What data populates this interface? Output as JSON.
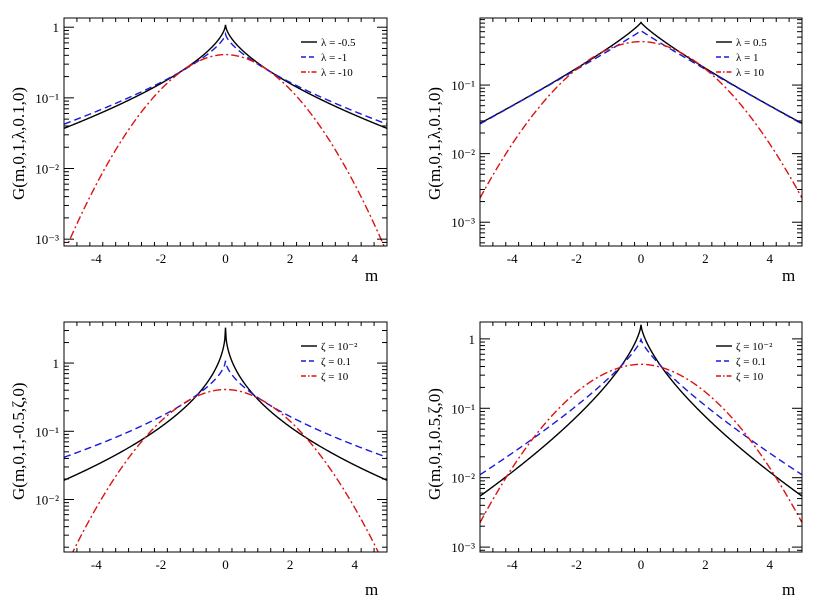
{
  "chart_data": [
    {
      "type": "line",
      "panel": "top-left",
      "ylabel": "G(m,0,1,λ,0.1,0)",
      "xlabel": "m",
      "xlim": [
        -5,
        5
      ],
      "ylim": [
        0.0008,
        1.35
      ],
      "yscale": "log",
      "xticks": [
        -4,
        -2,
        0,
        2,
        4
      ],
      "xtick_labels": [
        "-4",
        "-2",
        "0",
        "2",
        "4"
      ],
      "yticks": [
        0.001,
        0.01,
        0.1,
        1
      ],
      "ytick_labels": [
        "10⁻³",
        "10⁻²",
        "10⁻¹",
        "1"
      ],
      "legend_position": "top-right",
      "series": [
        {
          "name": "λ = -0.5",
          "color": "#000000",
          "dash": "solid",
          "peak": 1.08,
          "scale": 0.23,
          "power": 0.62
        },
        {
          "name": "λ = -1",
          "color": "#1a1adc",
          "dash": "dashed",
          "peak": 0.8,
          "scale": 0.37,
          "power": 0.68
        },
        {
          "name": "λ = -10",
          "color": "#dd1111",
          "dash": "dashdot",
          "peak": 0.41,
          "scale": 1.3,
          "power": 1.9
        }
      ]
    },
    {
      "type": "line",
      "panel": "top-right",
      "ylabel": "G(m,0,1,λ,0.1,0)",
      "xlabel": "m",
      "xlim": [
        -5,
        5
      ],
      "ylim": [
        0.00045,
        0.95
      ],
      "yscale": "log",
      "xticks": [
        -4,
        -2,
        0,
        2,
        4
      ],
      "xtick_labels": [
        "-4",
        "-2",
        "0",
        "2",
        "4"
      ],
      "yticks": [
        0.001,
        0.01,
        0.1
      ],
      "ytick_labels": [
        "10⁻³",
        "10⁻²",
        "10⁻¹"
      ],
      "legend_position": "top-right",
      "series": [
        {
          "name": "λ = 0.5",
          "color": "#000000",
          "dash": "solid",
          "peak": 0.82,
          "scale": 0.54,
          "power": 0.86
        },
        {
          "name": "λ = 1",
          "color": "#1a1adc",
          "dash": "dashed",
          "peak": 0.62,
          "scale": 0.74,
          "power": 0.96
        },
        {
          "name": "λ = 10",
          "color": "#dd1111",
          "dash": "dashdot",
          "peak": 0.43,
          "scale": 1.45,
          "power": 1.9
        }
      ]
    },
    {
      "type": "line",
      "panel": "bottom-left",
      "ylabel": "G(m,0,1,-0.5,ζ,0)",
      "xlabel": "m",
      "xlim": [
        -5,
        5
      ],
      "ylim": [
        0.0017,
        4.0
      ],
      "yscale": "log",
      "xticks": [
        -4,
        -2,
        0,
        2,
        4
      ],
      "xtick_labels": [
        "-4",
        "-2",
        "0",
        "2",
        "4"
      ],
      "yticks": [
        0.01,
        0.1,
        1
      ],
      "ytick_labels": [
        "10⁻²",
        "10⁻¹",
        "1"
      ],
      "legend_position": "top-right",
      "series": [
        {
          "name": "ζ = 10⁻²",
          "color": "#000000",
          "dash": "solid",
          "peak": 3.3,
          "scale": 0.035,
          "power": 0.47
        },
        {
          "name": "ζ = 0.1",
          "color": "#1a1adc",
          "dash": "dashed",
          "peak": 1.08,
          "scale": 0.22,
          "power": 0.6
        },
        {
          "name": "ζ = 10",
          "color": "#dd1111",
          "dash": "dashdot",
          "peak": 0.41,
          "scale": 1.34,
          "power": 1.9
        }
      ]
    },
    {
      "type": "line",
      "panel": "bottom-right",
      "ylabel": "G(m,0,1,0.5,ζ,0)",
      "xlabel": "m",
      "xlim": [
        -5,
        5
      ],
      "ylim": [
        0.00085,
        1.75
      ],
      "yscale": "log",
      "xticks": [
        -4,
        -2,
        0,
        2,
        4
      ],
      "xtick_labels": [
        "-4",
        "-2",
        "0",
        "2",
        "4"
      ],
      "yticks": [
        0.001,
        0.01,
        0.1,
        1
      ],
      "ytick_labels": [
        "10⁻³",
        "10⁻²",
        "10⁻¹",
        "1"
      ],
      "legend_position": "top-right",
      "series": [
        {
          "name": "ζ = 10⁻²",
          "color": "#000000",
          "dash": "solid",
          "peak": 1.6,
          "scale": 0.14,
          "power": 0.68
        },
        {
          "name": "ζ = 0.1",
          "color": "#1a1adc",
          "dash": "dashed",
          "peak": 0.98,
          "scale": 0.3,
          "power": 0.78
        },
        {
          "name": "ζ = 10",
          "color": "#dd1111",
          "dash": "dashdot",
          "peak": 0.43,
          "scale": 1.45,
          "power": 1.9
        }
      ]
    }
  ]
}
